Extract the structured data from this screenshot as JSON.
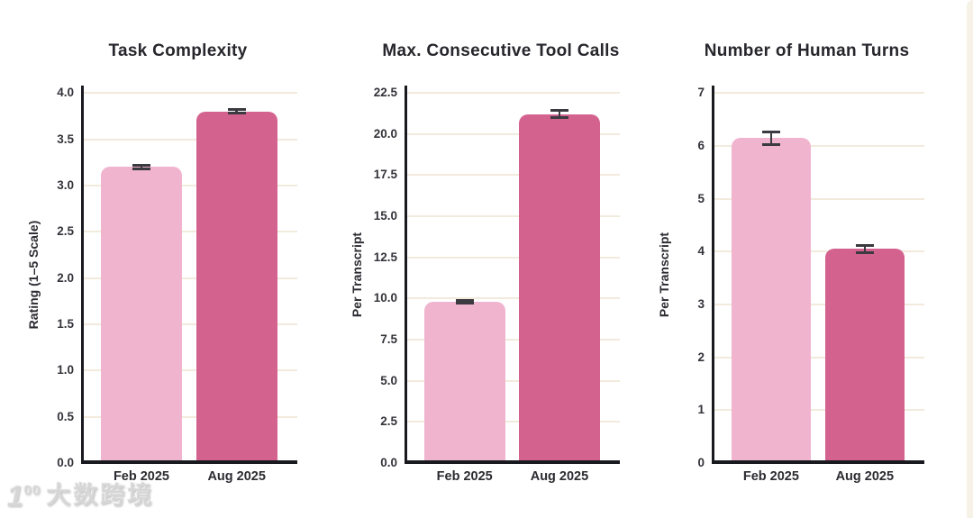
{
  "figure": {
    "background": "#ffffff",
    "edge_strip_color": "#f6f2e7"
  },
  "palette": {
    "bar_feb": "#F0B4CF",
    "bar_aug": "#D4628F",
    "error_bar": "#3A3A40",
    "gridline": "#F2EBDD",
    "axis": "#191920",
    "title_text": "#26262C",
    "tick_text": "#33333A"
  },
  "watermark": {
    "logo_prefix": "1",
    "logo_suffix": "00",
    "brand_text": "大数跨境",
    "color": "#d6d6d6"
  },
  "chart_data": [
    {
      "type": "bar",
      "title": "Task Complexity",
      "ylabel": "Rating (1–5 Scale)",
      "xlabel": "",
      "categories": [
        "Feb 2025",
        "Aug 2025"
      ],
      "values": [
        3.2,
        3.8
      ],
      "errors": [
        0.02,
        0.02
      ],
      "yticks": [
        0.0,
        0.5,
        1.0,
        1.5,
        2.0,
        2.5,
        3.0,
        3.5,
        4.0
      ],
      "ytick_labels": [
        "0.0",
        "0.5",
        "1.0",
        "1.5",
        "2.0",
        "2.5",
        "3.0",
        "3.5",
        "4.0"
      ],
      "ylim": [
        0,
        4.08
      ],
      "grid": true,
      "legend": "none"
    },
    {
      "type": "bar",
      "title": "Max. Consecutive Tool Calls",
      "ylabel": "Per Transcript",
      "xlabel": "",
      "categories": [
        "Feb 2025",
        "Aug 2025"
      ],
      "values": [
        9.8,
        21.2
      ],
      "errors": [
        0.1,
        0.22
      ],
      "yticks": [
        0.0,
        2.5,
        5.0,
        7.5,
        10.0,
        12.5,
        15.0,
        17.5,
        20.0,
        22.5
      ],
      "ytick_labels": [
        "0.0",
        "2.5",
        "5.0",
        "7.5",
        "10.0",
        "12.5",
        "15.0",
        "17.5",
        "20.0",
        "22.5"
      ],
      "ylim": [
        0,
        22.94
      ],
      "grid": true,
      "legend": "none"
    },
    {
      "type": "bar",
      "title": "Number of Human Turns",
      "ylabel": "Per Transcript",
      "xlabel": "",
      "categories": [
        "Feb 2025",
        "Aug 2025"
      ],
      "values": [
        6.15,
        4.05
      ],
      "errors": [
        0.12,
        0.07
      ],
      "yticks": [
        0,
        1,
        2,
        3,
        4,
        5,
        6,
        7
      ],
      "ytick_labels": [
        "0",
        "1",
        "2",
        "3",
        "4",
        "5",
        "6",
        "7"
      ],
      "ylim": [
        0,
        7.14
      ],
      "grid": true,
      "legend": "none"
    }
  ]
}
